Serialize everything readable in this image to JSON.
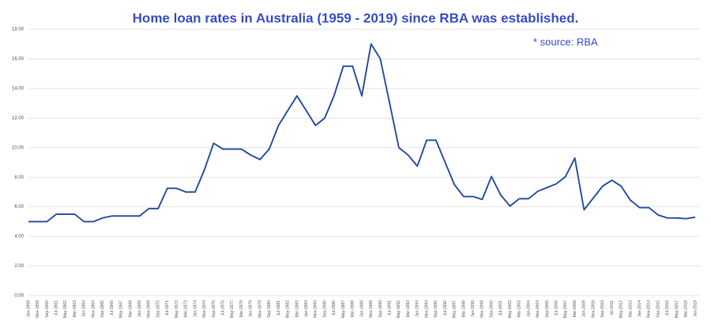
{
  "chart_data": {
    "type": "line",
    "title": "Home loan rates in Australia (1959 - 2019) since RBA was established.",
    "annotation": "* source: RBA",
    "categories": [
      "Jan-1959",
      "Nov-1959",
      "Sep-1960",
      "Jul-1961",
      "May-1962",
      "Mar-1963",
      "Jan-1964",
      "Nov-1964",
      "Sep-1965",
      "Jul-1966",
      "May-1967",
      "Mar-1968",
      "Jan-1969",
      "Nov-1969",
      "Sep-1970",
      "Jul-1971",
      "May-1972",
      "Mar-1973",
      "Jan-1974",
      "Nov-1974",
      "Sep-1975",
      "Jul-1976",
      "May-1977",
      "Mar-1978",
      "Jan-1979",
      "Nov-1979",
      "Sep-1980",
      "Jul-1981",
      "May-1982",
      "Mar-1983",
      "Jan-1984",
      "Nov-1984",
      "Sep-1985",
      "Jul-1986",
      "May-1987",
      "Mar-1988",
      "Jan-1989",
      "Nov-1989",
      "Sep-1990",
      "Jul-1991",
      "May-1992",
      "Mar-1993",
      "Jan-1994",
      "Nov-1994",
      "Sep-1995",
      "Jul-1996",
      "May-1997",
      "Mar-1998",
      "Jan-1999",
      "Nov-1999",
      "Sep-2000",
      "Jul-2001",
      "May-2002",
      "Mar-2003",
      "Jan-2004",
      "Nov-2004",
      "Sep-2005",
      "Jul-2006",
      "May-2007",
      "Mar-2008",
      "Jan-2009",
      "Nov-2009",
      "Sep-2010",
      "Jul-2011",
      "May-2012",
      "Mar-2013",
      "Jan-2014",
      "Nov-2014",
      "Sep-2015",
      "Jul-2016",
      "May-2017",
      "Mar-2018",
      "Jan-2019"
    ],
    "series": [
      {
        "name": "Home loan rate",
        "color": "#2f55a4",
        "values": [
          5.0,
          5.0,
          5.0,
          5.5,
          5.5,
          5.5,
          5.0,
          5.0,
          5.25,
          5.38,
          5.38,
          5.38,
          5.38,
          5.88,
          5.88,
          7.25,
          7.25,
          7.0,
          7.0,
          8.5,
          10.3,
          9.9,
          9.9,
          9.9,
          9.5,
          9.2,
          9.9,
          11.5,
          12.5,
          13.5,
          12.5,
          11.5,
          12.0,
          13.5,
          15.5,
          15.5,
          13.5,
          17.0,
          16.0,
          13.0,
          10.0,
          9.5,
          8.75,
          10.5,
          10.5,
          9.0,
          7.5,
          6.7,
          6.7,
          6.5,
          8.05,
          6.8,
          6.05,
          6.55,
          6.55,
          7.05,
          7.3,
          7.55,
          8.05,
          9.3,
          5.8,
          6.6,
          7.4,
          7.8,
          7.4,
          6.45,
          5.95,
          5.95,
          5.45,
          5.25,
          5.25,
          5.2,
          5.3
        ]
      }
    ],
    "ylim": [
      0,
      18
    ],
    "yticks": [
      {
        "value": 0,
        "label": "0.00"
      },
      {
        "value": 2,
        "label": "2.00"
      },
      {
        "value": 4,
        "label": "4.00"
      },
      {
        "value": 6,
        "label": "6.00"
      },
      {
        "value": 8,
        "label": "8.00"
      },
      {
        "value": 10,
        "label": "10.00"
      },
      {
        "value": 12,
        "label": "12.00"
      },
      {
        "value": 14,
        "label": "14.00"
      },
      {
        "value": 16,
        "label": "16.00"
      },
      {
        "value": 18,
        "label": "18.00"
      }
    ],
    "grid": true
  }
}
